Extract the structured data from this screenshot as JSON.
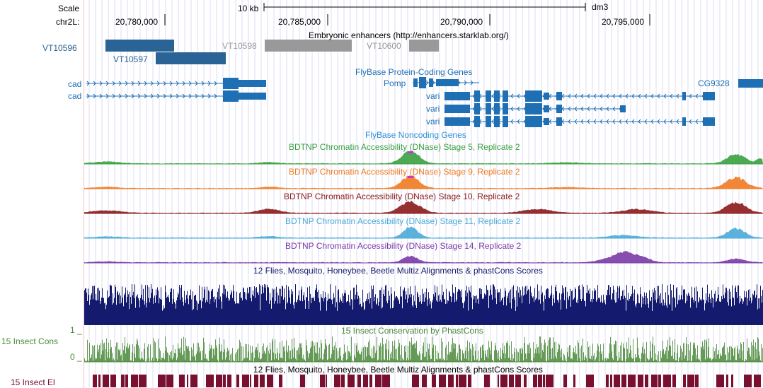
{
  "ruler": {
    "scale_label": "Scale",
    "scale_bar_label": "10 kb",
    "assembly": "dm3",
    "chrom_label": "chr2L:",
    "positions": [
      "20,780,000",
      "20,785,000",
      "20,790,000",
      "20,795,000"
    ]
  },
  "tracks": {
    "enhancers": {
      "title": "Embryonic enhancers (http://enhancers.starklab.org/)",
      "items": [
        {
          "name": "VT10596",
          "color": "#2a6496",
          "shade": "dark"
        },
        {
          "name": "VT10597",
          "color": "#2a6496",
          "shade": "dark"
        },
        {
          "name": "VT10598",
          "color": "#999999",
          "shade": "light"
        },
        {
          "name": "VT10600",
          "color": "#999999",
          "shade": "light"
        }
      ]
    },
    "flybase_coding": {
      "title": "FlyBase Protein-Coding Genes",
      "color": "#1f6fb4",
      "genes": [
        "cad",
        "cad",
        "Pomp",
        "vari",
        "vari",
        "vari",
        "CG9328"
      ]
    },
    "flybase_noncoding": {
      "title": "FlyBase Noncoding Genes",
      "color": "#2b8fd6"
    },
    "dnase": [
      {
        "title": "BDTNP Chromatin Accessibility (DNase) Stage 5, Replicate 2",
        "color": "#3aa040"
      },
      {
        "title": "BDTNP Chromatin Accessibility (DNase) Stage 9, Replicate 2",
        "color": "#f07a20"
      },
      {
        "title": "BDTNP Chromatin Accessibility (DNase) Stage 10, Replicate 2",
        "color": "#8b1a1a"
      },
      {
        "title": "BDTNP Chromatin Accessibility (DNase) Stage 11, Replicate 2",
        "color": "#4aaad8"
      },
      {
        "title": "BDTNP Chromatin Accessibility (DNase) Stage 14, Replicate 2",
        "color": "#7a3aa8"
      }
    ],
    "multiz": {
      "title": "12 Flies, Mosquito, Honeybee, Beetle Multiz Alignments & phastCons Scores",
      "color": "#141a6e"
    },
    "insect_cons": {
      "title": "15 Insect Conservation by PhastCons",
      "side_label": "15 Insect Cons",
      "axis_top": "1 _",
      "axis_bottom": "0 _",
      "color": "#4a8a3a"
    },
    "insect_el": {
      "title": "12 Flies, Mosquito, Honeybee, Beetle Multiz Alignments & phastCons Scores",
      "side_label": "15 Insect El",
      "color": "#7a1030"
    }
  }
}
